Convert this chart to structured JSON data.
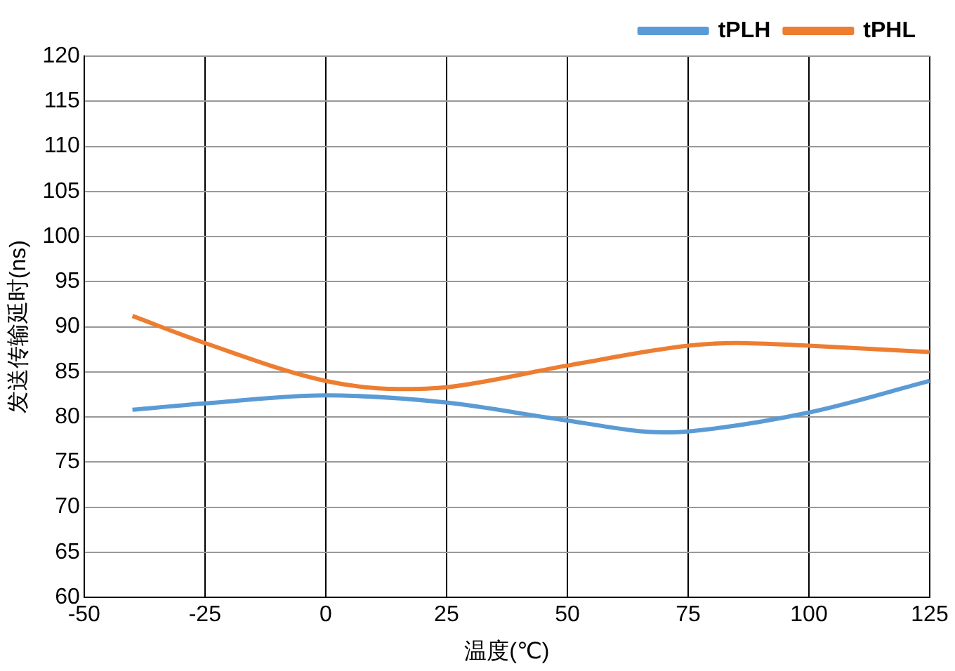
{
  "chart_data": {
    "type": "line",
    "xlabel": "温度(℃)",
    "ylabel": "发送传输延时(ns)",
    "xlim": [
      -50,
      125
    ],
    "xticks": [
      -50,
      -25,
      0,
      25,
      50,
      75,
      100,
      125
    ],
    "ylim": [
      60,
      120
    ],
    "yticks": [
      60,
      65,
      70,
      75,
      80,
      85,
      90,
      95,
      100,
      105,
      110,
      115,
      120
    ],
    "grid": true,
    "legend": "top right",
    "marker": "none",
    "line_style": "solid",
    "series": [
      {
        "name": "tPLH",
        "color": "#5b9bd5",
        "x": [
          -40,
          -25,
          0,
          25,
          50,
          70,
          75,
          100,
          125
        ],
        "values": [
          80.8,
          81.5,
          82.4,
          81.6,
          79.6,
          78.3,
          78.4,
          80.5,
          84
        ]
      },
      {
        "name": "tPHL",
        "color": "#ed7d31",
        "x": [
          -40,
          -25,
          0,
          15,
          25,
          50,
          75,
          85,
          100,
          125
        ],
        "values": [
          91.2,
          88.2,
          84,
          83.1,
          83.3,
          85.7,
          87.9,
          88.2,
          87.9,
          87.2
        ]
      }
    ]
  }
}
